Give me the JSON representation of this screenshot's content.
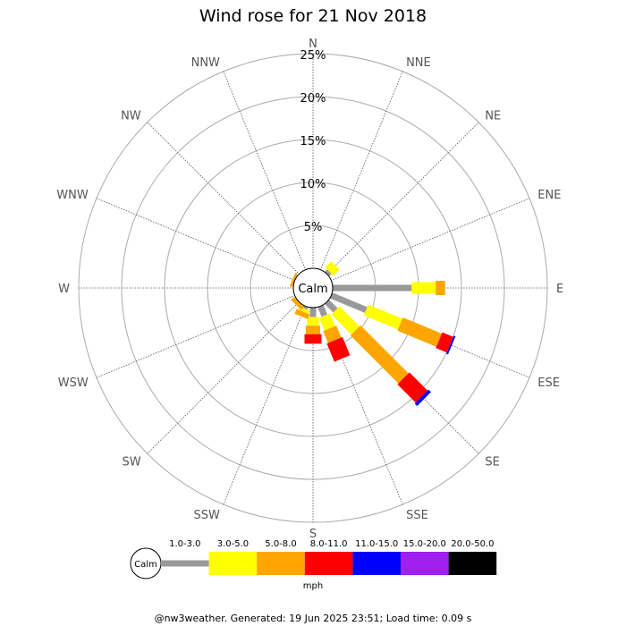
{
  "chart_data": {
    "type": "wind-rose",
    "title": "Wind rose for 21 Nov 2018",
    "center_label": "Calm",
    "radial_ticks": [
      "5%",
      "10%",
      "15%",
      "20%",
      "25%"
    ],
    "radial_tick_values": [
      5,
      10,
      15,
      20,
      25
    ],
    "radial_max": 25,
    "grid": true,
    "directions": [
      "N",
      "NNE",
      "NE",
      "ENE",
      "E",
      "ESE",
      "SE",
      "SSE",
      "S",
      "SSW",
      "SW",
      "WSW",
      "W",
      "WNW",
      "NW",
      "NNW"
    ],
    "bins": [
      {
        "label": "1.0-3.0",
        "color": "#999999"
      },
      {
        "label": "3.0-5.0",
        "color": "#ffff00"
      },
      {
        "label": "5.0-8.0",
        "color": "#ffa500"
      },
      {
        "label": "8.0-11.0",
        "color": "#ff0000"
      },
      {
        "label": "11.0-15.0",
        "color": "#0000ff"
      },
      {
        "label": "15.0-20.0",
        "color": "#a020f0"
      },
      {
        "label": "20.0-50.0",
        "color": "#000000"
      }
    ],
    "legend_unit": "mph",
    "legend_center_label": "Calm",
    "series": [
      {
        "direction": "N",
        "values": [
          0,
          0,
          0,
          0,
          0,
          0,
          0
        ]
      },
      {
        "direction": "NNE",
        "values": [
          0,
          0,
          0,
          0,
          0,
          0,
          0
        ]
      },
      {
        "direction": "NE",
        "values": [
          0.4,
          1.0,
          0,
          0,
          0,
          0,
          0
        ]
      },
      {
        "direction": "ENE",
        "values": [
          0,
          0,
          0,
          0,
          0,
          0,
          0
        ]
      },
      {
        "direction": "E",
        "values": [
          9.2,
          2.8,
          1.1,
          0,
          0,
          0,
          0
        ]
      },
      {
        "direction": "ESE",
        "values": [
          4.4,
          4.3,
          4.9,
          1.4,
          0.2,
          0,
          0
        ]
      },
      {
        "direction": "SE",
        "values": [
          1.4,
          3.3,
          7.9,
          3.0,
          0.4,
          0,
          0
        ]
      },
      {
        "direction": "SSE",
        "values": [
          1.2,
          1.6,
          1.5,
          2.3,
          0,
          0,
          0
        ]
      },
      {
        "direction": "S",
        "values": [
          1.1,
          1.0,
          1.0,
          1.1,
          0,
          0,
          0
        ]
      },
      {
        "direction": "SSW",
        "values": [
          0.3,
          0.4,
          0.6,
          0,
          0,
          0,
          0
        ]
      },
      {
        "direction": "SW",
        "values": [
          0,
          0,
          0.5,
          0,
          0,
          0,
          0
        ]
      },
      {
        "direction": "WSW",
        "values": [
          0,
          0,
          0,
          0,
          0,
          0,
          0
        ]
      },
      {
        "direction": "W",
        "values": [
          0,
          0,
          0,
          0,
          0,
          0,
          0
        ]
      },
      {
        "direction": "WNW",
        "values": [
          0,
          0,
          0.3,
          0,
          0,
          0,
          0
        ]
      },
      {
        "direction": "NW",
        "values": [
          0,
          0,
          0,
          0,
          0,
          0,
          0
        ]
      },
      {
        "direction": "NNW",
        "values": [
          0,
          0,
          0,
          0,
          0,
          0,
          0
        ]
      }
    ]
  },
  "footer": "@nw3weather. Generated: 19 Jun 2025 23:51; Load time: 0.09 s"
}
